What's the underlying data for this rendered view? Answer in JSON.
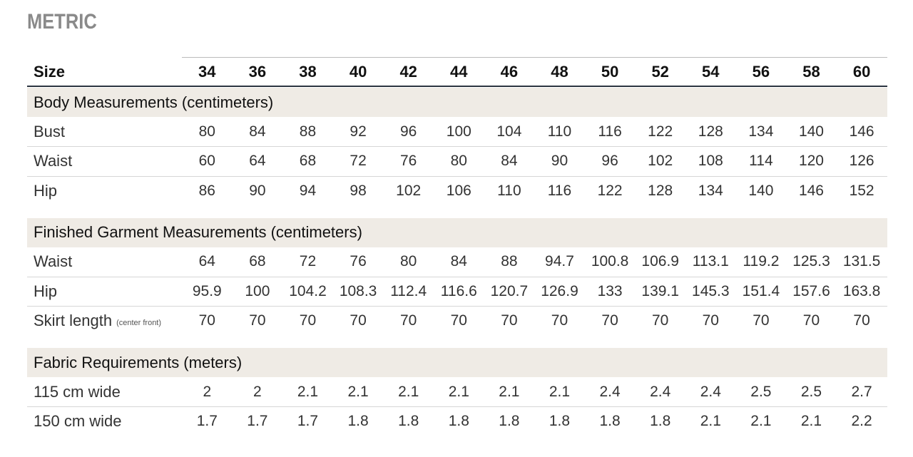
{
  "title": "METRIC",
  "table": {
    "header": [
      "Size",
      34,
      36,
      38,
      40,
      42,
      44,
      46,
      48,
      50,
      52,
      54,
      56,
      58,
      60
    ],
    "sections": [
      {
        "title": "Body Measurements (centimeters)",
        "rows": [
          {
            "label": "Bust",
            "values": [
              80,
              84,
              88,
              92,
              96,
              100,
              104,
              110,
              116,
              122,
              128,
              134,
              140,
              146
            ]
          },
          {
            "label": "Waist",
            "values": [
              60,
              64,
              68,
              72,
              76,
              80,
              84,
              90,
              96,
              102,
              108,
              114,
              120,
              126
            ]
          },
          {
            "label": "Hip",
            "values": [
              86,
              90,
              94,
              98,
              102,
              106,
              110,
              116,
              122,
              128,
              134,
              140,
              146,
              152
            ]
          }
        ]
      },
      {
        "title": "Finished Garment Measurements (centimeters)",
        "rows": [
          {
            "label": "Waist",
            "values": [
              64,
              68,
              72,
              76,
              80,
              84,
              88,
              94.7,
              100.8,
              106.9,
              113.1,
              119.2,
              125.3,
              131.5
            ]
          },
          {
            "label": "Hip",
            "values": [
              95.9,
              100,
              104.2,
              108.3,
              112.4,
              116.6,
              120.7,
              126.9,
              133,
              139.1,
              145.3,
              151.4,
              157.6,
              163.8
            ]
          },
          {
            "label": "Skirt length",
            "note": "(center front)",
            "values": [
              70,
              70,
              70,
              70,
              70,
              70,
              70,
              70,
              70,
              70,
              70,
              70,
              70,
              70
            ]
          }
        ]
      },
      {
        "title": "Fabric Requirements (meters)",
        "rows": [
          {
            "label": "115 cm wide",
            "values": [
              2,
              2,
              2.1,
              2.1,
              2.1,
              2.1,
              2.1,
              2.1,
              2.4,
              2.4,
              2.4,
              2.5,
              2.5,
              2.7
            ]
          },
          {
            "label": "150 cm wide",
            "values": [
              1.7,
              1.7,
              1.7,
              1.8,
              1.8,
              1.8,
              1.8,
              1.8,
              1.8,
              1.8,
              2.1,
              2.1,
              2.1,
              2.2
            ]
          }
        ]
      }
    ]
  }
}
